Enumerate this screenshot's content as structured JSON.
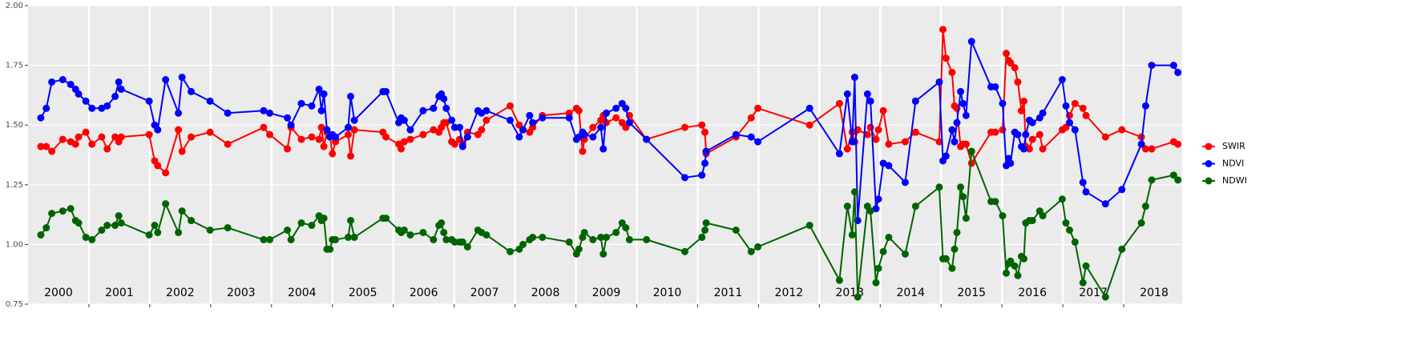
{
  "chart_data": {
    "type": "line",
    "x": [
      2000.21,
      2000.3,
      2000.39,
      2000.57,
      2000.7,
      2000.78,
      2000.83,
      2000.95,
      2001.05,
      2001.21,
      2001.3,
      2001.43,
      2001.49,
      2001.53,
      2001.99,
      2002.08,
      2002.13,
      2002.26,
      2002.47,
      2002.53,
      2002.68,
      2002.99,
      2003.28,
      2003.87,
      2003.97,
      2004.26,
      2004.32,
      2004.49,
      2004.66,
      2004.78,
      2004.82,
      2004.86,
      2004.91,
      2004.96,
      2005.0,
      2005.05,
      2005.26,
      2005.3,
      2005.36,
      2005.83,
      2005.88,
      2006.09,
      2006.13,
      2006.18,
      2006.28,
      2006.49,
      2006.66,
      2006.75,
      2006.79,
      2006.83,
      2006.87,
      2006.96,
      2007.01,
      2007.09,
      2007.14,
      2007.22,
      2007.39,
      2007.45,
      2007.53,
      2007.92,
      2008.07,
      2008.13,
      2008.24,
      2008.29,
      2008.45,
      2008.89,
      2009.01,
      2009.05,
      2009.11,
      2009.14,
      2009.28,
      2009.41,
      2009.45,
      2009.5,
      2009.66,
      2009.76,
      2009.82,
      2009.88,
      2010.16,
      2010.79,
      2011.07,
      2011.12,
      2011.14,
      2011.63,
      2011.88,
      2011.99,
      2012.84,
      2013.33,
      2013.46,
      2013.54,
      2013.58,
      2013.63,
      2013.79,
      2013.84,
      2013.93,
      2013.97,
      2014.05,
      2014.14,
      2014.41,
      2014.58,
      2014.97,
      2015.03,
      2015.08,
      2015.18,
      2015.22,
      2015.26,
      2015.32,
      2015.36,
      2015.41,
      2015.5,
      2015.82,
      2015.89,
      2016.01,
      2016.07,
      2016.11,
      2016.14,
      2016.21,
      2016.26,
      2016.32,
      2016.36,
      2016.39,
      2016.45,
      2016.5,
      2016.62,
      2016.67,
      2016.99,
      2017.05,
      2017.11,
      2017.2,
      2017.33,
      2017.38,
      2017.7,
      2017.97,
      2018.29,
      2018.36,
      2018.46,
      2018.82,
      2018.89
    ],
    "series": [
      {
        "name": "SWIR",
        "color": "#ff0000",
        "values": [
          1.41,
          1.41,
          1.39,
          1.44,
          1.43,
          1.42,
          1.45,
          1.47,
          1.42,
          1.45,
          1.4,
          1.45,
          1.43,
          1.45,
          1.46,
          1.35,
          1.33,
          1.3,
          1.48,
          1.39,
          1.45,
          1.47,
          1.42,
          1.49,
          1.46,
          1.4,
          1.49,
          1.44,
          1.45,
          1.44,
          1.49,
          1.41,
          1.47,
          1.45,
          1.38,
          1.43,
          1.46,
          1.37,
          1.48,
          1.47,
          1.45,
          1.42,
          1.4,
          1.43,
          1.44,
          1.46,
          1.48,
          1.47,
          1.49,
          1.51,
          1.51,
          1.43,
          1.42,
          1.44,
          1.42,
          1.47,
          1.46,
          1.48,
          1.52,
          1.58,
          1.5,
          1.48,
          1.47,
          1.49,
          1.54,
          1.55,
          1.57,
          1.56,
          1.39,
          1.44,
          1.49,
          1.52,
          1.54,
          1.51,
          1.53,
          1.51,
          1.49,
          1.54,
          1.44,
          1.49,
          1.5,
          1.47,
          1.38,
          1.45,
          1.53,
          1.57,
          1.5,
          1.59,
          1.4,
          1.47,
          1.43,
          1.48,
          1.46,
          1.49,
          1.44,
          1.48,
          1.56,
          1.42,
          1.43,
          1.47,
          1.43,
          1.9,
          1.78,
          1.72,
          1.58,
          1.57,
          1.41,
          1.42,
          1.42,
          1.34,
          1.47,
          1.47,
          1.48,
          1.8,
          1.77,
          1.76,
          1.74,
          1.68,
          1.56,
          1.6,
          1.41,
          1.4,
          1.44,
          1.46,
          1.4,
          1.48,
          1.49,
          1.54,
          1.59,
          1.57,
          1.54,
          1.45,
          1.48,
          1.45,
          1.4,
          1.4,
          1.43,
          1.42
        ]
      },
      {
        "name": "NDVI",
        "color": "#0000ff",
        "values": [
          1.53,
          1.57,
          1.68,
          1.69,
          1.67,
          1.65,
          1.63,
          1.6,
          1.57,
          1.57,
          1.58,
          1.62,
          1.68,
          1.65,
          1.6,
          1.5,
          1.48,
          1.69,
          1.55,
          1.7,
          1.64,
          1.6,
          1.55,
          1.56,
          1.55,
          1.53,
          1.5,
          1.59,
          1.58,
          1.65,
          1.56,
          1.63,
          1.48,
          1.45,
          1.46,
          1.45,
          1.49,
          1.62,
          1.52,
          1.64,
          1.64,
          1.51,
          1.53,
          1.52,
          1.48,
          1.56,
          1.57,
          1.62,
          1.63,
          1.61,
          1.57,
          1.52,
          1.49,
          1.49,
          1.41,
          1.45,
          1.56,
          1.55,
          1.56,
          1.52,
          1.45,
          1.48,
          1.54,
          1.51,
          1.53,
          1.53,
          1.44,
          1.45,
          1.47,
          1.46,
          1.45,
          1.49,
          1.4,
          1.55,
          1.57,
          1.59,
          1.57,
          1.51,
          1.44,
          1.28,
          1.29,
          1.34,
          1.39,
          1.46,
          1.45,
          1.43,
          1.57,
          1.38,
          1.63,
          1.43,
          1.7,
          1.1,
          1.63,
          1.6,
          1.15,
          1.19,
          1.34,
          1.33,
          1.26,
          1.6,
          1.68,
          1.35,
          1.37,
          1.48,
          1.43,
          1.51,
          1.64,
          1.59,
          1.54,
          1.85,
          1.66,
          1.66,
          1.59,
          1.33,
          1.36,
          1.34,
          1.47,
          1.46,
          1.41,
          1.4,
          1.46,
          1.52,
          1.51,
          1.53,
          1.55,
          1.69,
          1.58,
          1.51,
          1.48,
          1.26,
          1.22,
          1.17,
          1.23,
          1.42,
          1.58,
          1.75,
          1.75,
          1.72
        ]
      },
      {
        "name": "NDWI",
        "color": "#006400",
        "values": [
          1.04,
          1.07,
          1.13,
          1.14,
          1.15,
          1.1,
          1.09,
          1.03,
          1.02,
          1.06,
          1.08,
          1.08,
          1.12,
          1.09,
          1.04,
          1.08,
          1.05,
          1.17,
          1.05,
          1.14,
          1.1,
          1.06,
          1.07,
          1.02,
          1.02,
          1.06,
          1.02,
          1.09,
          1.08,
          1.12,
          1.1,
          1.11,
          0.98,
          0.98,
          1.02,
          1.02,
          1.03,
          1.1,
          1.03,
          1.11,
          1.11,
          1.06,
          1.05,
          1.06,
          1.04,
          1.05,
          1.02,
          1.08,
          1.09,
          1.05,
          1.02,
          1.02,
          1.01,
          1.01,
          1.01,
          0.99,
          1.06,
          1.05,
          1.04,
          0.97,
          0.98,
          1.0,
          1.02,
          1.03,
          1.03,
          1.01,
          0.96,
          0.98,
          1.03,
          1.05,
          1.02,
          1.03,
          0.96,
          1.03,
          1.05,
          1.09,
          1.07,
          1.02,
          1.02,
          0.97,
          1.03,
          1.06,
          1.09,
          1.06,
          0.97,
          0.99,
          1.08,
          0.85,
          1.16,
          1.04,
          1.22,
          0.78,
          1.16,
          1.14,
          0.84,
          0.9,
          0.97,
          1.03,
          0.96,
          1.16,
          1.24,
          0.94,
          0.94,
          0.9,
          0.98,
          1.05,
          1.24,
          1.2,
          1.11,
          1.39,
          1.18,
          1.18,
          1.12,
          0.88,
          0.92,
          0.93,
          0.91,
          0.87,
          0.95,
          0.94,
          1.09,
          1.1,
          1.1,
          1.14,
          1.12,
          1.19,
          1.09,
          1.06,
          1.01,
          0.84,
          0.91,
          0.78,
          0.98,
          1.09,
          1.16,
          1.27,
          1.29,
          1.27
        ]
      }
    ],
    "xlim": [
      2000.0,
      2018.96
    ],
    "xticks": [
      2001,
      2002,
      2003,
      2004,
      2005,
      2006,
      2007,
      2008,
      2009,
      2010,
      2011,
      2012,
      2013,
      2014,
      2015,
      2016,
      2017,
      2018
    ],
    "year_labels": [
      {
        "value": 2000.5,
        "label": "2000"
      },
      {
        "value": 2001.5,
        "label": "2001"
      },
      {
        "value": 2002.5,
        "label": "2002"
      },
      {
        "value": 2003.5,
        "label": "2003"
      },
      {
        "value": 2004.5,
        "label": "2004"
      },
      {
        "value": 2005.5,
        "label": "2005"
      },
      {
        "value": 2006.5,
        "label": "2006"
      },
      {
        "value": 2007.5,
        "label": "2007"
      },
      {
        "value": 2008.5,
        "label": "2008"
      },
      {
        "value": 2009.5,
        "label": "2009"
      },
      {
        "value": 2010.5,
        "label": "2010"
      },
      {
        "value": 2011.5,
        "label": "2011"
      },
      {
        "value": 2012.5,
        "label": "2012"
      },
      {
        "value": 2013.5,
        "label": "2013"
      },
      {
        "value": 2014.5,
        "label": "2014"
      },
      {
        "value": 2015.5,
        "label": "2015"
      },
      {
        "value": 2016.5,
        "label": "2016"
      },
      {
        "value": 2017.5,
        "label": "2017"
      },
      {
        "value": 2018.5,
        "label": "2018"
      }
    ],
    "ylim": [
      0.75,
      2.0
    ],
    "yticks": [
      {
        "value": 0.75,
        "label": "0.75"
      },
      {
        "value": 1.0,
        "label": "1.00"
      },
      {
        "value": 1.25,
        "label": "1.25"
      },
      {
        "value": 1.5,
        "label": "1.50"
      },
      {
        "value": 1.75,
        "label": "1.75"
      },
      {
        "value": 2.0,
        "label": "2.00"
      }
    ],
    "grid": true,
    "legend": "right"
  }
}
